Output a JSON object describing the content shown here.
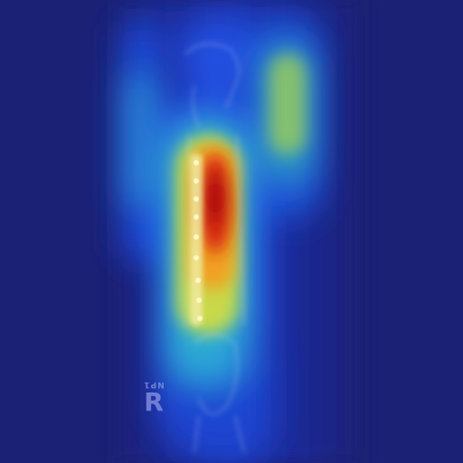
{
  "image": {
    "kind": "heatmap-overlay-xray",
    "colormap": [
      "#1b2175",
      "#1e3fd0",
      "#1f8fe0",
      "#35c9c0",
      "#e0d94a",
      "#f0a020",
      "#d62010",
      "#a00010"
    ]
  },
  "side_marker": {
    "small_text": "NP1",
    "letter": "R"
  }
}
